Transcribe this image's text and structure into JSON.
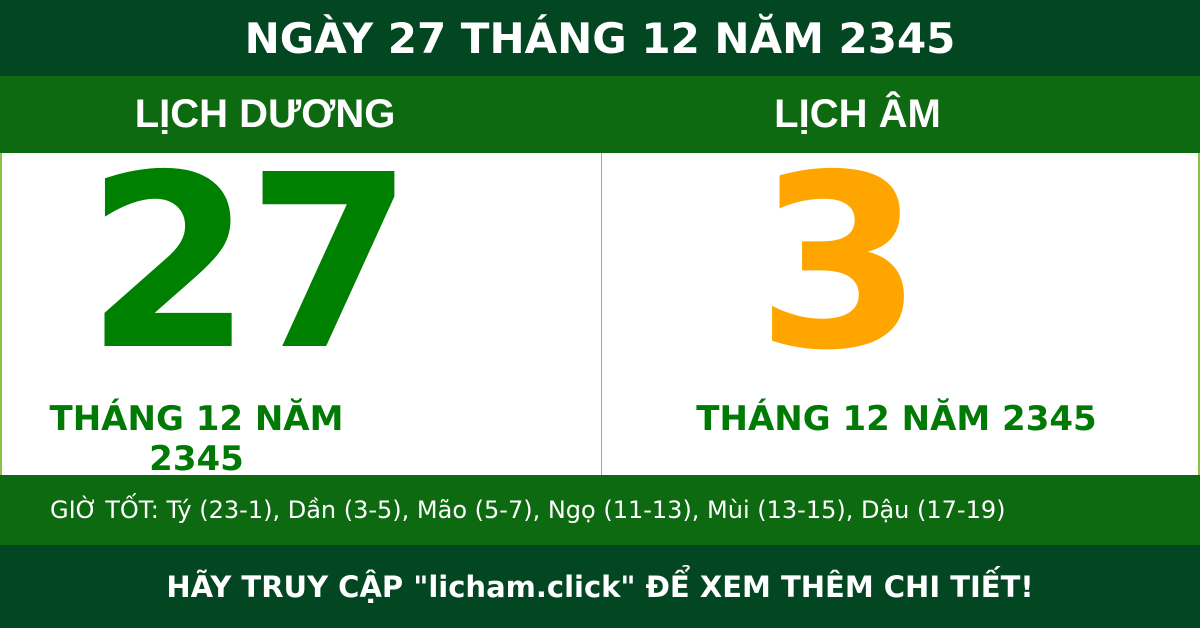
{
  "header": {
    "title": "NGÀY 27 THÁNG 12 NĂM 2345"
  },
  "solar": {
    "label": "LỊCH DƯƠNG",
    "day": "27",
    "month_year": "THÁNG 12 NĂM 2345"
  },
  "lunar": {
    "label": "LỊCH ÂM",
    "day": "3",
    "month_year": "THÁNG 12 NĂM 2345"
  },
  "good_hours": "GIỜ TỐT: Tý (23-1), Dần (3-5), Mão (5-7), Ngọ (11-13), Mùi (13-15), Dậu (17-19)",
  "footer": {
    "text": "HÃY TRUY CẬP \"licham.click\" ĐỂ XEM THÊM CHI TIẾT!"
  },
  "colors": {
    "dark_green": "#034622",
    "green": "#0e6a10",
    "solar_day": "#008000",
    "lunar_day": "#ffa500"
  }
}
